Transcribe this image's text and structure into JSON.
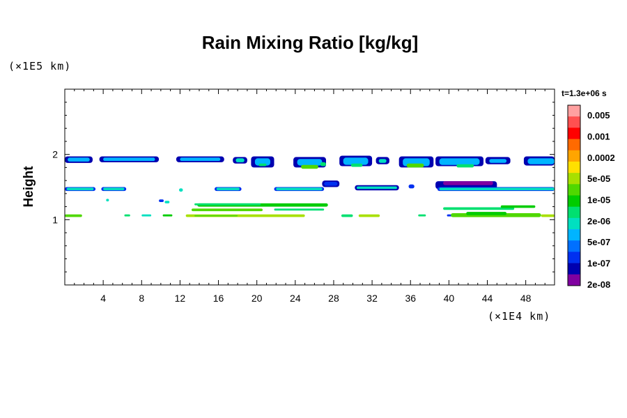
{
  "chart_data": {
    "type": "heatmap",
    "title": "Rain Mixing Ratio [kg/kg]",
    "ylabel": "Height",
    "y_unit_label": "(×1E5 km)",
    "x_unit_label": "(×1E4 km)",
    "time_label": "t=1.3e+06 s",
    "xlim": [
      0,
      51
    ],
    "ylim": [
      0,
      3
    ],
    "x_ticks": [
      4,
      8,
      12,
      16,
      20,
      24,
      28,
      32,
      36,
      40,
      44,
      48
    ],
    "y_ticks": [
      1,
      2
    ],
    "grid": false,
    "legend_placement": "right",
    "colorbar": {
      "labels": [
        "0.005",
        "0.001",
        "0.0002",
        "5e-05",
        "1e-05",
        "2e-06",
        "5e-07",
        "1e-07",
        "2e-08"
      ],
      "colors": [
        "#ffa0a0",
        "#ff5050",
        "#ff0000",
        "#ff6a00",
        "#ffa500",
        "#ffe000",
        "#a8e000",
        "#50d800",
        "#00cc00",
        "#00e070",
        "#00e0c0",
        "#00b4ff",
        "#0070ff",
        "#0030f0",
        "#0000b0",
        "#8000a0"
      ]
    },
    "features": [
      {
        "layer": "upper",
        "y": [
          1.85,
          2.0
        ],
        "x": [
          0,
          51
        ],
        "dominant_color": "#00b4ff",
        "note_color": "#0030f0"
      },
      {
        "layer": "mid",
        "y": [
          1.42,
          1.5
        ],
        "x": [
          0,
          51
        ],
        "dominant_color": "#00e0c0"
      },
      {
        "layer": "lower",
        "y": [
          1.0,
          1.25
        ],
        "x": [
          1,
          51
        ],
        "dominant_color": "#a8e000"
      }
    ]
  },
  "colors": {
    "axis": "#000000",
    "background": "#ffffff"
  }
}
